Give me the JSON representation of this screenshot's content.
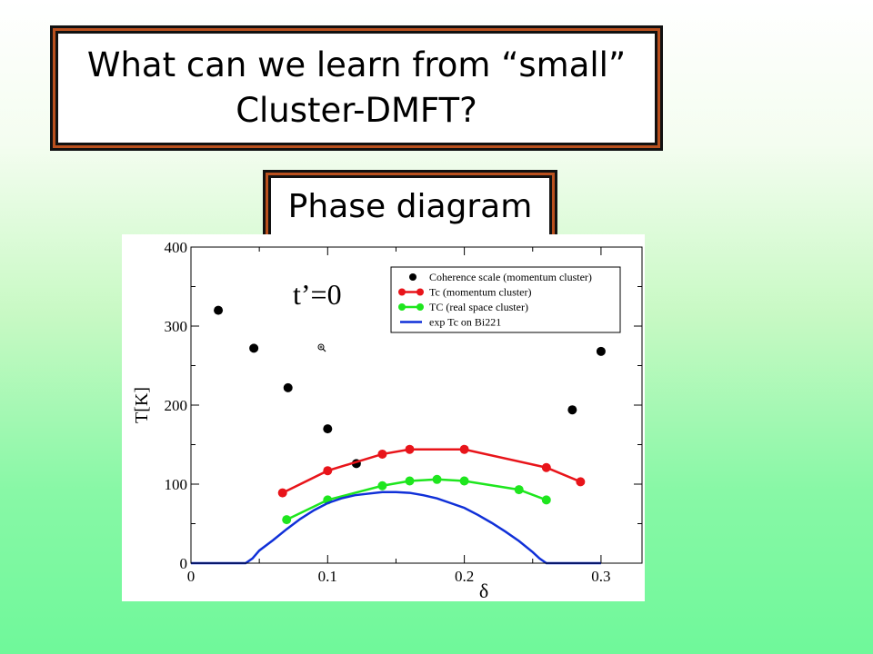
{
  "slide": {
    "title_line1": "What can we learn from “small”",
    "title_line2": "Cluster-DMFT?",
    "subtitle": "Phase diagram"
  },
  "colors": {
    "coherence": "#000000",
    "tc_momentum": "#e8141a",
    "tc_real": "#1ee61e",
    "exp": "#1030d8",
    "title_border": "#b9501e"
  },
  "chart_data": {
    "type": "scatter",
    "title": "",
    "xlabel": "δ",
    "ylabel": "T[K]",
    "xlim": [
      0,
      0.33
    ],
    "ylim": [
      0,
      400
    ],
    "x_ticks": [
      0,
      0.1,
      0.2,
      0.3
    ],
    "x_tick_labels": [
      "0",
      "0.1",
      "0.2",
      "0.3"
    ],
    "y_ticks": [
      0,
      100,
      200,
      300,
      400
    ],
    "y_tick_labels": [
      "0",
      "100",
      "200",
      "300",
      "400"
    ],
    "annotation": "t’=0",
    "legend_position": "top-right",
    "series": [
      {
        "name": "Coherence scale (momentum cluster)",
        "style": "points",
        "color": "#000000",
        "x": [
          0.02,
          0.046,
          0.071,
          0.1,
          0.121,
          0.279,
          0.3
        ],
        "y": [
          320,
          272,
          222,
          170,
          126,
          194,
          268
        ]
      },
      {
        "name": "Tc (momentum cluster)",
        "style": "line-points",
        "color": "#e8141a",
        "x": [
          0.067,
          0.1,
          0.14,
          0.16,
          0.2,
          0.26,
          0.285
        ],
        "y": [
          89,
          117,
          138,
          144,
          144,
          121,
          103
        ]
      },
      {
        "name": "TC (real space cluster)",
        "style": "line-points",
        "color": "#1ee61e",
        "x": [
          0.07,
          0.1,
          0.14,
          0.16,
          0.18,
          0.2,
          0.24,
          0.26
        ],
        "y": [
          55,
          80,
          98,
          104,
          106,
          104,
          93,
          80
        ]
      },
      {
        "name": "exp Tc on Bi221",
        "style": "line",
        "color": "#1030d8",
        "x": [
          0,
          0.04,
          0.045,
          0.05,
          0.06,
          0.07,
          0.08,
          0.09,
          0.1,
          0.11,
          0.12,
          0.13,
          0.14,
          0.15,
          0.16,
          0.17,
          0.18,
          0.19,
          0.2,
          0.21,
          0.22,
          0.23,
          0.24,
          0.25,
          0.255,
          0.26,
          0.3
        ],
        "y": [
          0,
          0,
          6,
          16,
          29,
          43,
          56,
          67,
          76,
          82,
          86,
          88,
          90,
          90,
          89,
          86,
          82,
          76,
          70,
          61,
          51,
          40,
          28,
          14,
          6,
          0,
          0
        ]
      }
    ]
  }
}
